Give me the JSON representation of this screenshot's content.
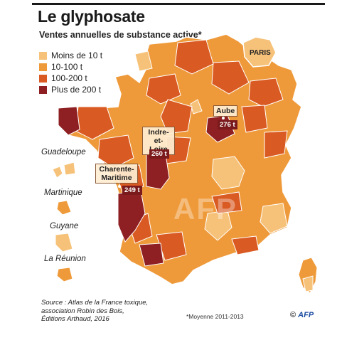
{
  "title": "Le glyphosate",
  "subtitle": "Ventes annuelles de substance active*",
  "legend": [
    {
      "label": "Moins de 10 t",
      "color": "#f6c27a"
    },
    {
      "label": "10-100 t",
      "color": "#ef9a3a"
    },
    {
      "label": "100-200 t",
      "color": "#d95a22"
    },
    {
      "label": "Plus de 200 t",
      "color": "#8e1f22"
    }
  ],
  "highlights": [
    {
      "name": "Aube",
      "value": "276 t"
    },
    {
      "name": "Indre-et-Loire",
      "value": "260 t"
    },
    {
      "name": "Charente-Maritime",
      "value": "249 t"
    }
  ],
  "overseas": [
    "Guadeloupe",
    "Martinique",
    "Guyane",
    "La Réunion"
  ],
  "paris_label": "PARIS",
  "source": "Source : Atlas de la France toxique, association Robin des Bois, Éditions Arthaud, 2016",
  "source_lines": [
    "Source : Atlas de la France toxique,",
    "association Robin des Bois,",
    "Éditions Arthaud, 2016"
  ],
  "footnote": "*Moyenne 2011-2013",
  "credit_copyright": "©",
  "credit_agency": "AFP",
  "watermark": "AFP"
}
